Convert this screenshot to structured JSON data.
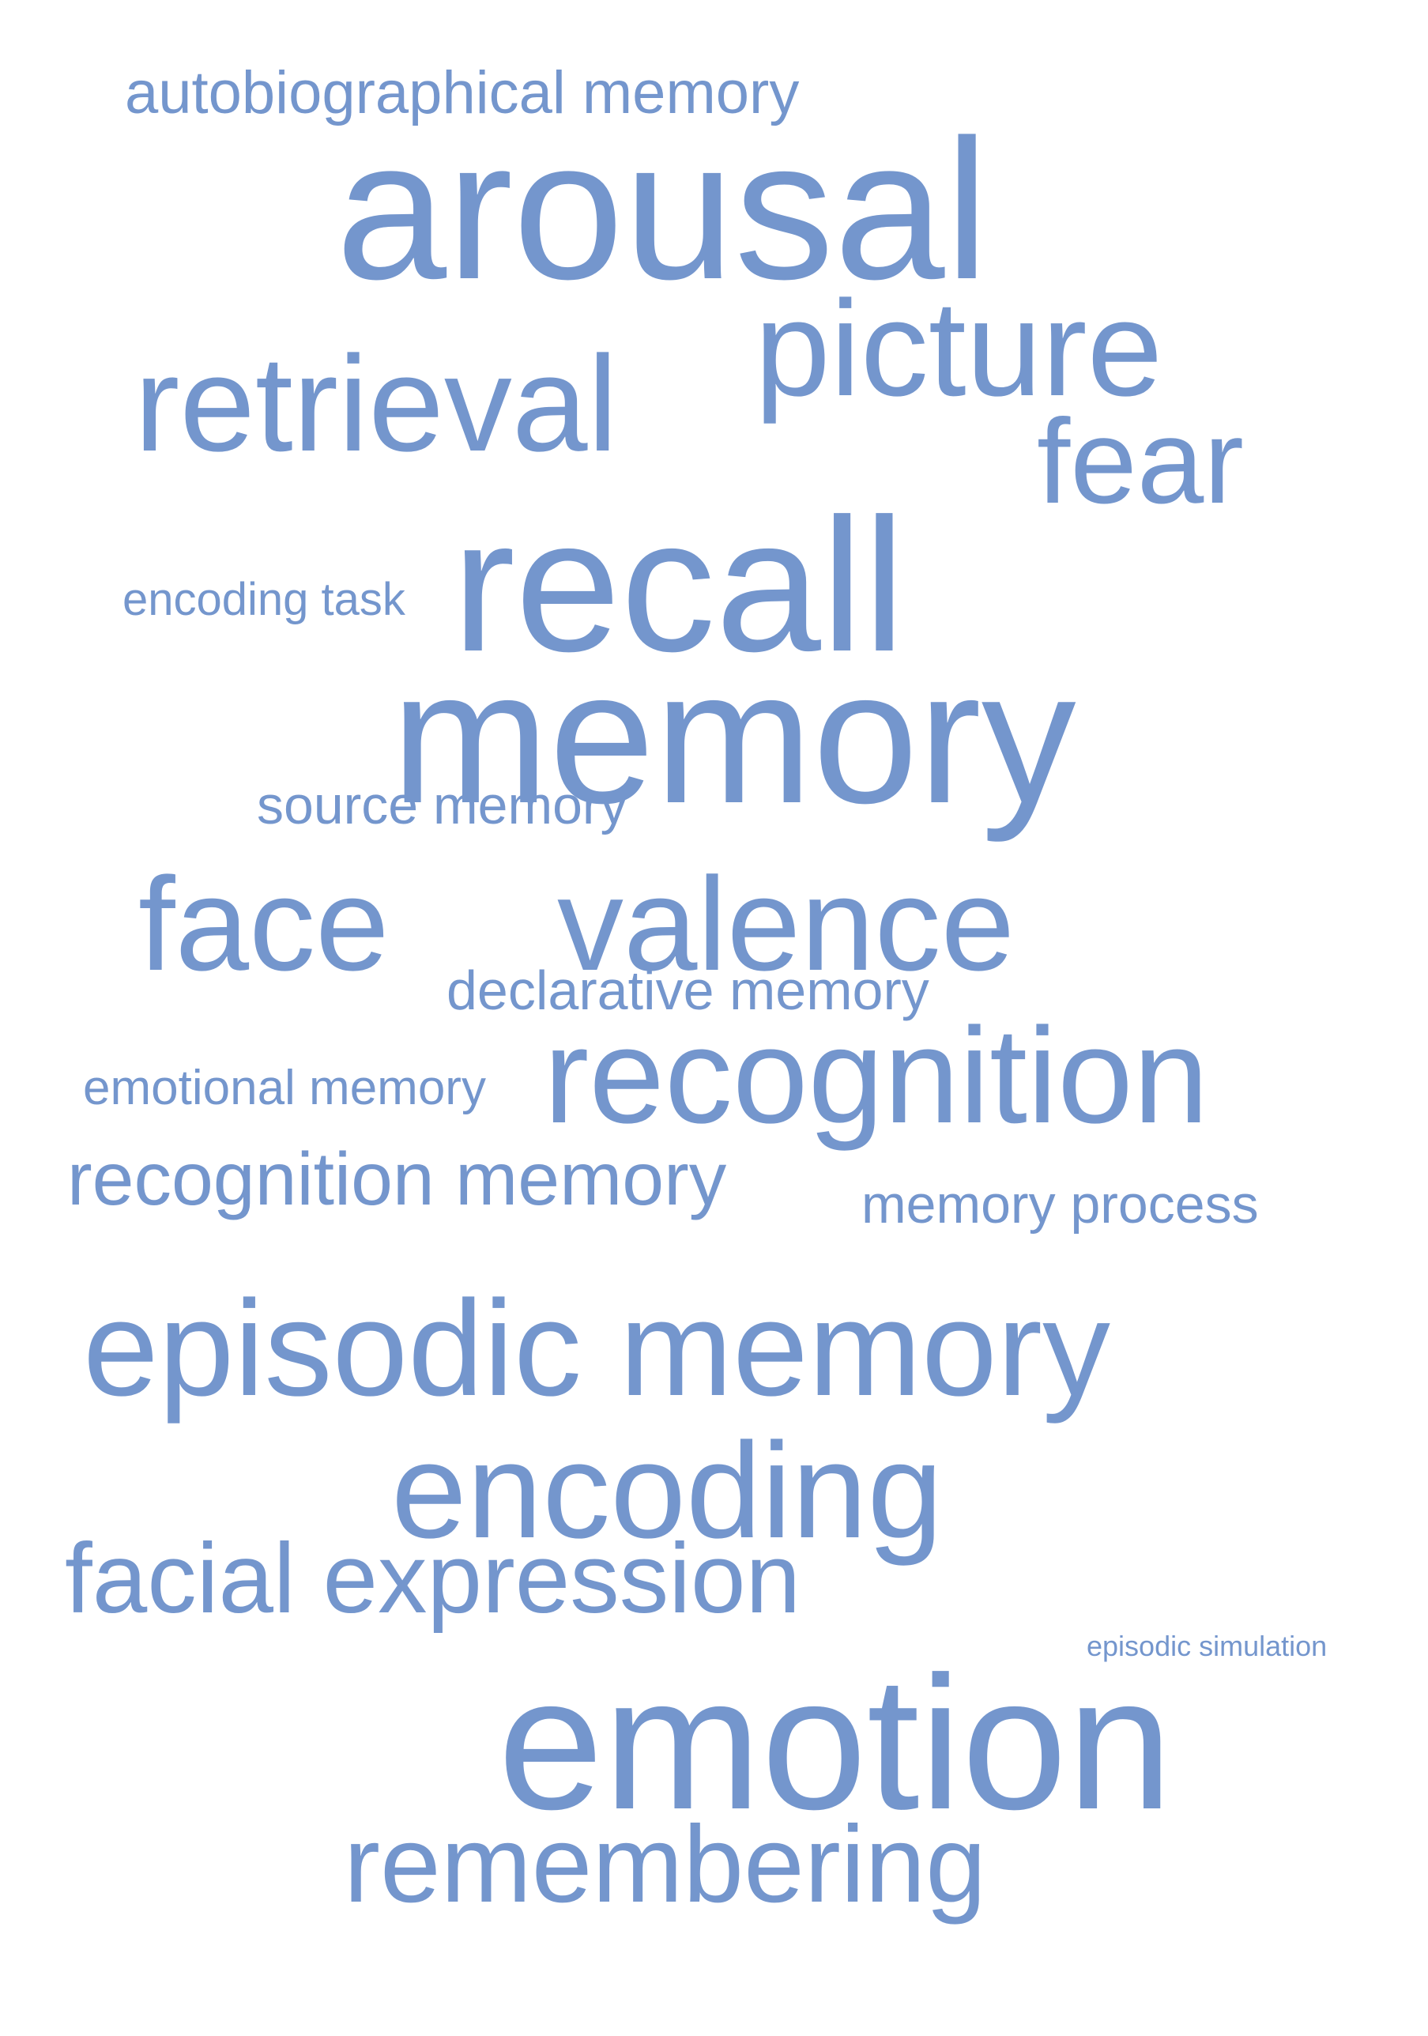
{
  "colors": {
    "word": "#7496cd",
    "background": "#ffffff"
  },
  "words": [
    {
      "id": "autobiographical",
      "text": "autobiographical memory"
    },
    {
      "id": "arousal",
      "text": "arousal"
    },
    {
      "id": "picture",
      "text": "picture"
    },
    {
      "id": "retrieval",
      "text": "retrieval"
    },
    {
      "id": "fear",
      "text": "fear"
    },
    {
      "id": "encoding-task",
      "text": "encoding task"
    },
    {
      "id": "recall",
      "text": "recall"
    },
    {
      "id": "memory",
      "text": "memory"
    },
    {
      "id": "source-memory",
      "text": "source memory"
    },
    {
      "id": "face",
      "text": "face"
    },
    {
      "id": "valence",
      "text": "valence"
    },
    {
      "id": "declarative",
      "text": "declarative memory"
    },
    {
      "id": "emotional-memory",
      "text": "emotional memory"
    },
    {
      "id": "recognition",
      "text": "recognition"
    },
    {
      "id": "recognition-mem",
      "text": "recognition memory"
    },
    {
      "id": "memory-process",
      "text": "memory process"
    },
    {
      "id": "episodic-memory",
      "text": "episodic memory"
    },
    {
      "id": "encoding",
      "text": "encoding"
    },
    {
      "id": "facial-expr",
      "text": "facial expression"
    },
    {
      "id": "episodic-sim",
      "text": "episodic simulation"
    },
    {
      "id": "emotion",
      "text": "emotion"
    },
    {
      "id": "remembering",
      "text": "remembering"
    }
  ]
}
